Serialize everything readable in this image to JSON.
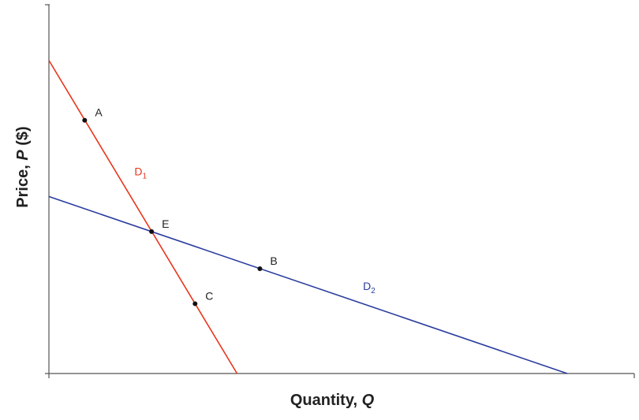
{
  "chart_data": {
    "type": "line",
    "title": "",
    "xlabel": {
      "text": "Quantity, ",
      "var": "Q"
    },
    "ylabel": {
      "text": "Price, ",
      "var": "P",
      "unit": " ($)"
    },
    "xlim": [
      0,
      100
    ],
    "ylim": [
      0,
      100
    ],
    "grid": false,
    "tick_labels": "none",
    "series": [
      {
        "name": "D",
        "subscript": "1",
        "color": "#e8351a",
        "points": [
          [
            0,
            92
          ],
          [
            36.3,
            0
          ]
        ]
      },
      {
        "name": "D",
        "subscript": "2",
        "color": "#2b3d9e",
        "points": [
          [
            0,
            52
          ],
          [
            100,
            0
          ]
        ]
      }
    ],
    "labeled_points": [
      {
        "label": "A",
        "x": 6.9,
        "y": 74.4
      },
      {
        "label": "E",
        "x": 19.8,
        "y": 41.7
      },
      {
        "label": "B",
        "x": 40.7,
        "y": 30.8
      },
      {
        "label": "C",
        "x": 28.2,
        "y": 20.5
      }
    ],
    "curve_labels": [
      {
        "series": 0,
        "x": 16.5,
        "y": 58.2
      },
      {
        "series": 1,
        "x": 60.6,
        "y": 24.5
      }
    ]
  }
}
